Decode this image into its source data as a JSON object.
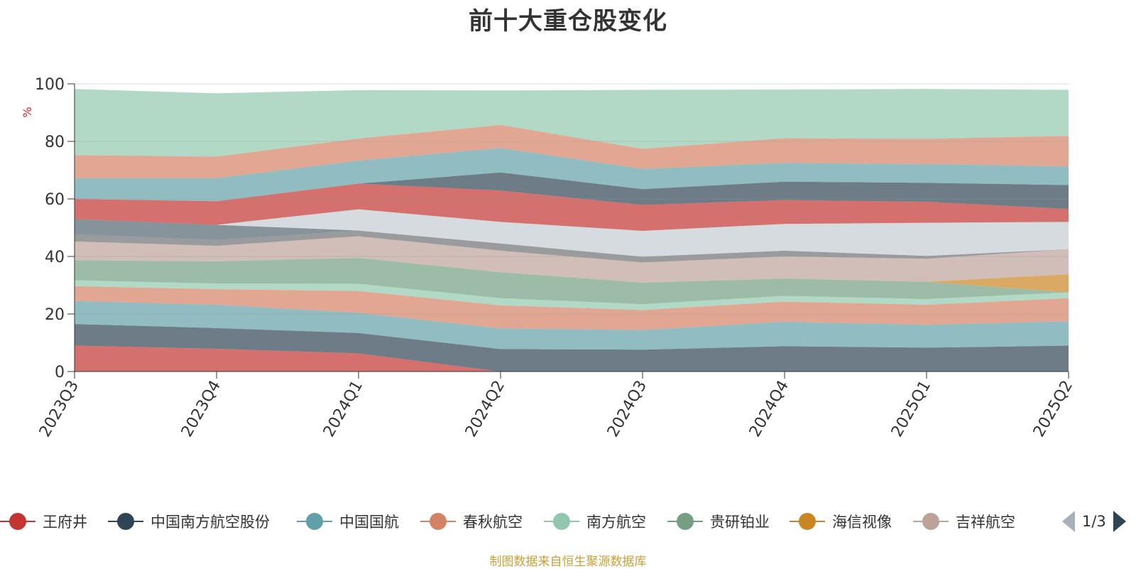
{
  "title": "前十大重仓股变化",
  "chart_data": {
    "type": "area",
    "stacked": true,
    "ylabel": "%",
    "ylim": [
      0,
      100
    ],
    "yticks": [
      0,
      20,
      40,
      60,
      80,
      100
    ],
    "grid": true,
    "categories": [
      "2023Q3",
      "2023Q4",
      "2024Q1",
      "2024Q2",
      "2024Q3",
      "2024Q4",
      "2025Q1",
      "2025Q2"
    ],
    "series": [
      {
        "name": "王府井",
        "color": "#c23531",
        "values": [
          9.0,
          7.9,
          6.3,
          0.0,
          0.0,
          0.0,
          0.0,
          0.0
        ]
      },
      {
        "name": "中国南方航空股份",
        "color": "#2f4554",
        "values": [
          7.5,
          7.2,
          7.1,
          7.8,
          7.6,
          8.8,
          8.3,
          9.0
        ]
      },
      {
        "name": "中国国航",
        "color": "#61a0a8",
        "values": [
          8.0,
          8.1,
          7.0,
          7.2,
          6.8,
          8.5,
          7.9,
          8.5
        ]
      },
      {
        "name": "春秋航空",
        "color": "#d48265",
        "values": [
          5.2,
          5.4,
          7.6,
          8.0,
          7.0,
          7.0,
          7.0,
          8.0
        ]
      },
      {
        "name": "南方航空",
        "color": "#91c7ae",
        "values": [
          2.0,
          2.0,
          2.5,
          2.5,
          2.0,
          2.0,
          2.0,
          2.0
        ]
      },
      {
        "name": "贵研铂业",
        "color": "#749f83",
        "values": [
          7.0,
          7.7,
          9.0,
          9.0,
          7.5,
          6.0,
          6.0,
          0.0
        ]
      },
      {
        "name": "海信视像",
        "color": "#ca8622",
        "values": [
          0.0,
          0.0,
          0.0,
          0.0,
          0.0,
          0.0,
          0.0,
          6.3
        ]
      },
      {
        "name": "吉祥航空",
        "color": "#bda29a",
        "values": [
          6.5,
          5.4,
          7.5,
          7.5,
          7.0,
          7.7,
          8.0,
          8.7
        ]
      },
      {
        "name": "",
        "color": "#6e7074",
        "values": [
          2.5,
          2.0,
          2.0,
          2.5,
          2.0,
          2.0,
          1.0,
          0.0
        ]
      },
      {
        "name": "",
        "color": "#546570",
        "values": [
          5.3,
          5.3,
          0.0,
          0.0,
          0.0,
          0.0,
          0.0,
          0.0
        ]
      },
      {
        "name": "",
        "color": "#c4ccd3",
        "values": [
          0.0,
          0.0,
          7.4,
          7.5,
          9.0,
          9.3,
          11.5,
          9.5
        ]
      },
      {
        "name": "",
        "color": "#c23531",
        "values": [
          7.0,
          8.2,
          8.9,
          10.9,
          9.0,
          8.3,
          7.3,
          4.5
        ]
      },
      {
        "name": "",
        "color": "#2f4554",
        "values": [
          0.0,
          0.0,
          0.0,
          6.3,
          5.5,
          6.4,
          6.6,
          8.3
        ]
      },
      {
        "name": "",
        "color": "#61a0a8",
        "values": [
          7.2,
          8.0,
          8.0,
          8.5,
          7.0,
          6.5,
          6.5,
          6.5
        ]
      },
      {
        "name": "",
        "color": "#d48265",
        "values": [
          8.0,
          7.5,
          7.7,
          8.0,
          7.0,
          8.6,
          8.8,
          10.6
        ]
      },
      {
        "name": "",
        "color": "#91c7ae",
        "values": [
          23.0,
          22.0,
          16.8,
          12.0,
          20.5,
          16.9,
          17.3,
          16.0
        ]
      }
    ]
  },
  "legend": {
    "items": [
      {
        "label": "王府井",
        "color": "#c23531"
      },
      {
        "label": "中国南方航空股份",
        "color": "#2f4554"
      },
      {
        "label": "中国国航",
        "color": "#61a0a8"
      },
      {
        "label": "春秋航空",
        "color": "#d48265"
      },
      {
        "label": "南方航空",
        "color": "#91c7ae"
      },
      {
        "label": "贵研铂业",
        "color": "#749f83"
      },
      {
        "label": "海信视像",
        "color": "#ca8622"
      },
      {
        "label": "吉祥航空",
        "color": "#bda29a"
      }
    ],
    "page_text": "1/3"
  },
  "source_text": "制图数据来自恒生聚源数据库"
}
